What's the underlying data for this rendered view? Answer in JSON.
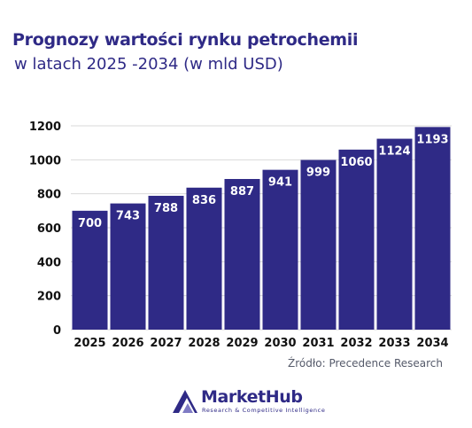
{
  "title_line1": "Prognozy wartości rynku petrochemii",
  "title_line2": " w latach 2025 -2034 (w mld USD)",
  "source": "Źródło: Precedence Research",
  "brand": {
    "name": "MarketHub",
    "tagline": "Research & Competitive Intelligence"
  },
  "colors": {
    "bar": "#2f2a86",
    "bar_label": "#ffffff",
    "grid": "#d9d9d9",
    "title": "#2f2a86"
  },
  "chart_data": {
    "type": "bar",
    "categories": [
      "2025",
      "2026",
      "2027",
      "2028",
      "2029",
      "2030",
      "2031",
      "2032",
      "2033",
      "2034"
    ],
    "values": [
      700,
      743,
      788,
      836,
      887,
      941,
      999,
      1060,
      1124,
      1193
    ],
    "title": "Prognozy wartości rynku petrochemii w latach 2025 -2034 (w mld USD)",
    "xlabel": "",
    "ylabel": "",
    "ylim": [
      0,
      1200
    ],
    "yticks": [
      0,
      200,
      400,
      600,
      800,
      1000,
      1200
    ],
    "grid": true,
    "legend": "none",
    "data_labels": true
  }
}
